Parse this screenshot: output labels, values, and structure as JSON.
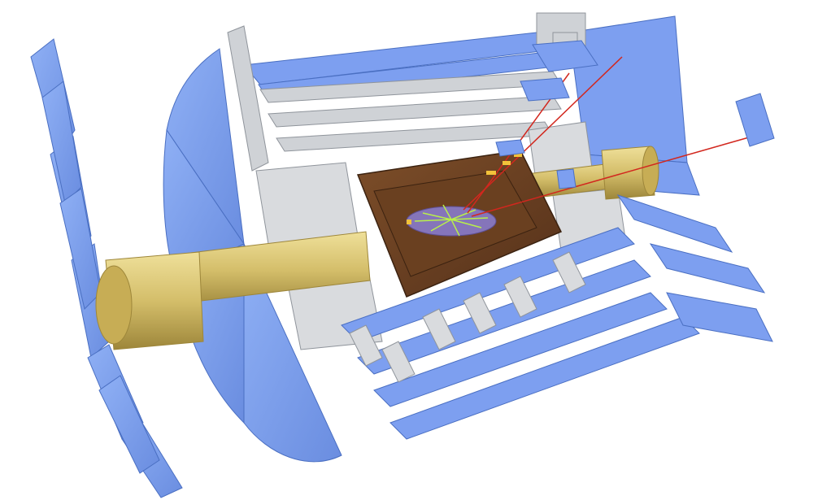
{
  "image": {
    "subject": "detector-event-display",
    "colors": {
      "muon_chambers": "#7d9ff0",
      "muon_edge": "#4a6fc2",
      "support_structure": "#cfd2d6",
      "structure_edge": "#8f949b",
      "beam_pipe": "#d4be6a",
      "beam_pipe_dark": "#a7913e",
      "calorimeter": "#6e4322",
      "calorimeter_dark": "#4a2a12",
      "inner_detector": "#8a7fd6",
      "tracks": "#b8f04a",
      "muon_tracks": "#d2271e",
      "hits": "#f2c23a"
    }
  }
}
